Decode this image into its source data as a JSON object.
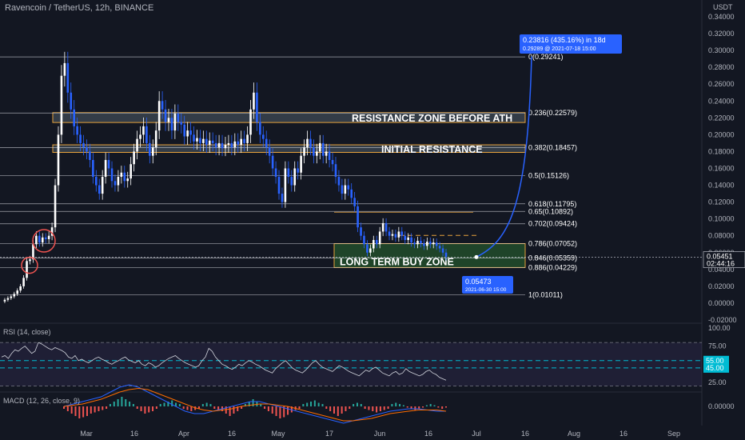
{
  "header": {
    "symbol": "Ravencoin / TetherUS, 12h, BINANCE",
    "unit": "USDT",
    "rsi_title": "RSI (14, close)",
    "macd_title": "MACD (12, 26, close, 9)"
  },
  "colors": {
    "background": "#131722",
    "up": "#ffffff",
    "down": "#2962ff",
    "level_line": "#d1d4dc",
    "zone_fill": "#4f5b66",
    "zone_border": "#e6a23c",
    "buy_zone": "#2e7d32",
    "projection": "#2962ff",
    "rsi_line": "#d1d4dc",
    "rsi_band": "#7e57c2",
    "rsi_level": "#00bcd4",
    "macd_line": "#2962ff",
    "signal_line": "#ff6d00",
    "hist_up": "#26a69a",
    "hist_down": "#ef5350",
    "label_box": "#2962ff"
  },
  "chart_data": {
    "type": "candlestick",
    "price_axis": {
      "ylim": [
        -0.02,
        0.345
      ],
      "ticks": [
        "0.34000",
        "0.32000",
        "0.30000",
        "0.28000",
        "0.26000",
        "0.24000",
        "0.22000",
        "0.20000",
        "0.18000",
        "0.16000",
        "0.14000",
        "0.12000",
        "0.10000",
        "0.08000",
        "0.06000",
        "0.04000",
        "0.02000",
        "0.00000",
        "-0.02000"
      ],
      "tick_values": [
        0.34,
        0.32,
        0.3,
        0.28,
        0.26,
        0.24,
        0.22,
        0.2,
        0.18,
        0.16,
        0.14,
        0.12,
        0.1,
        0.08,
        0.06,
        0.04,
        0.02,
        0.0,
        -0.02
      ],
      "current_price": "0.05451",
      "countdown": "02:44:16",
      "alt_price": "0.05500"
    },
    "time_axis": {
      "labels": [
        "Mar",
        "16",
        "Apr",
        "16",
        "May",
        "17",
        "Jun",
        "16",
        "Jul",
        "16",
        "Aug",
        "16",
        "Sep"
      ],
      "label_x": [
        108,
        168,
        230,
        290,
        348,
        412,
        475,
        536,
        596,
        657,
        718,
        780,
        843
      ]
    },
    "fib_levels": [
      {
        "label": "0.236(0.22579)",
        "value": 0.22579
      },
      {
        "label": "0.382(0.18457)",
        "value": 0.18457
      },
      {
        "label": "0.5(0.15126)",
        "value": 0.15126
      },
      {
        "label": "0.618(0.11795)",
        "value": 0.11795
      },
      {
        "label": "0.65(0.10892)",
        "value": 0.10892
      },
      {
        "label": "0.702(0.09424)",
        "value": 0.09424
      },
      {
        "label": "0.786(0.07052)",
        "value": 0.07052
      },
      {
        "label": "0.846(0.05359)",
        "value": 0.05359
      },
      {
        "label": "0.886(0.04229)",
        "value": 0.04229
      },
      {
        "label": "1(0.01011)",
        "value": 0.01011
      },
      {
        "label": "0(0.29241)",
        "value": 0.29241
      }
    ],
    "zones": [
      {
        "label": "RESISTANCE ZONE BEFORE ATH",
        "top": 0.2262,
        "bottom": 0.2145
      },
      {
        "label": "INITIAL RESISTANCE",
        "top": 0.188,
        "bottom": 0.179
      },
      {
        "label": "LONG TERM BUY ZONE",
        "top": 0.0707,
        "bottom": 0.0423
      }
    ],
    "projection": {
      "gain_label": "0.23816 (435.16%) in 18d",
      "target_label": "0.29289 @ 2021-07-18  15:00",
      "start_label": "0.05473",
      "start_date": "2021-06-30 15:00",
      "start_value": 0.05473,
      "end_value": 0.29289
    },
    "price_path": [
      0.002,
      0.004,
      0.006,
      0.008,
      0.011,
      0.015,
      0.02,
      0.03,
      0.05,
      0.052,
      0.07,
      0.08,
      0.072,
      0.078,
      0.076,
      0.08,
      0.09,
      0.14,
      0.2,
      0.27,
      0.285,
      0.25,
      0.23,
      0.21,
      0.2,
      0.19,
      0.185,
      0.18,
      0.17,
      0.15,
      0.14,
      0.13,
      0.15,
      0.17,
      0.16,
      0.145,
      0.14,
      0.15,
      0.155,
      0.145,
      0.148,
      0.165,
      0.18,
      0.195,
      0.2,
      0.21,
      0.19,
      0.175,
      0.185,
      0.205,
      0.24,
      0.23,
      0.215,
      0.22,
      0.205,
      0.225,
      0.215,
      0.212,
      0.198,
      0.205,
      0.2,
      0.192,
      0.196,
      0.19,
      0.195,
      0.188,
      0.193,
      0.19,
      0.185,
      0.19,
      0.184,
      0.188,
      0.19,
      0.185,
      0.192,
      0.188,
      0.195,
      0.19,
      0.2,
      0.23,
      0.25,
      0.215,
      0.2,
      0.195,
      0.185,
      0.175,
      0.16,
      0.15,
      0.13,
      0.12,
      0.16,
      0.15,
      0.14,
      0.16,
      0.155,
      0.175,
      0.185,
      0.195,
      0.185,
      0.175,
      0.18,
      0.19,
      0.175,
      0.18,
      0.17,
      0.165,
      0.15,
      0.14,
      0.13,
      0.14,
      0.135,
      0.125,
      0.115,
      0.09,
      0.08,
      0.07,
      0.06,
      0.065,
      0.075,
      0.07,
      0.085,
      0.095,
      0.085,
      0.08,
      0.082,
      0.078,
      0.085,
      0.08,
      0.075,
      0.078,
      0.072,
      0.07,
      0.074,
      0.071,
      0.068,
      0.073,
      0.07,
      0.072,
      0.068,
      0.065,
      0.06,
      0.055
    ],
    "rsi_axis": {
      "ticks": [
        "100.00",
        "75.00",
        "50.00",
        "25.00"
      ],
      "tick_values": [
        100,
        75,
        50,
        25
      ],
      "levels": [
        "55.00",
        "45.00"
      ],
      "level_values": [
        55,
        45
      ],
      "upper_band": 80,
      "lower_band": 20
    },
    "rsi_path": [
      60,
      62,
      58,
      65,
      70,
      68,
      72,
      75,
      70,
      65,
      68,
      80,
      78,
      75,
      72,
      70,
      73,
      71,
      69,
      66,
      60,
      58,
      62,
      55,
      57,
      54,
      52,
      55,
      58,
      60,
      57,
      55,
      52,
      50,
      53,
      55,
      58,
      60,
      56,
      54,
      52,
      55,
      50,
      48,
      52,
      50,
      46,
      48,
      52,
      55,
      58,
      60,
      62,
      58,
      55,
      52,
      50,
      48,
      46,
      48,
      55,
      60,
      72,
      68,
      60,
      55,
      50,
      48,
      45,
      43,
      46,
      50,
      48,
      52,
      55,
      53,
      50,
      48,
      45,
      42,
      40,
      38,
      44,
      48,
      52,
      55,
      50,
      45,
      42,
      40,
      38,
      42,
      47,
      52,
      55,
      50,
      46,
      44,
      42,
      40,
      44,
      48,
      46,
      43,
      40,
      38,
      36,
      34,
      38,
      42,
      40,
      44,
      46,
      42,
      38,
      36,
      34,
      38,
      40,
      36,
      38,
      44,
      40,
      38,
      36,
      34,
      36,
      40,
      42,
      38,
      36,
      32,
      30,
      28
    ],
    "macd_axis": {
      "ticks": [
        "0.00000"
      ],
      "tick_values": [
        0
      ]
    },
    "macd_hist": [
      -0.002,
      -0.004,
      -0.006,
      -0.008,
      -0.01,
      -0.009,
      -0.008,
      -0.006,
      -0.005,
      -0.004,
      -0.003,
      -0.002,
      0.002,
      0.004,
      0.006,
      0.008,
      0.006,
      0.004,
      0.002,
      -0.002,
      -0.004,
      -0.006,
      -0.005,
      -0.004,
      -0.002,
      0.002,
      0.003,
      0.004,
      0.005,
      0.003,
      0.002,
      -0.002,
      -0.003,
      -0.004,
      -0.003,
      -0.002,
      0.002,
      0.003,
      0.002,
      -0.002,
      -0.003,
      -0.004,
      -0.006,
      -0.008,
      -0.006,
      -0.004,
      -0.002,
      0.002,
      0.004,
      0.006,
      0.004,
      0.002,
      -0.002,
      -0.004,
      -0.006,
      -0.008,
      -0.01,
      -0.009,
      -0.007,
      -0.005,
      -0.003,
      -0.002,
      0.002,
      0.003,
      0.004,
      0.005,
      0.003,
      0.002,
      -0.002,
      -0.004,
      -0.006,
      -0.008,
      -0.006,
      -0.004,
      -0.002,
      0.002,
      0.003,
      0.002,
      -0.002,
      -0.003,
      -0.004,
      -0.005,
      -0.004,
      -0.003,
      -0.002,
      0.002,
      0.003,
      0.002,
      0.001,
      -0.001,
      -0.002,
      -0.003,
      -0.002,
      -0.001,
      0.001,
      0.002,
      0.001,
      -0.001,
      -0.002,
      -0.001
    ],
    "macd_line_path": [
      0.0,
      0.002,
      0.004,
      0.006,
      0.008,
      0.012,
      0.016,
      0.018,
      0.016,
      0.012,
      0.008,
      0.004,
      0.0,
      -0.004,
      -0.006,
      -0.006,
      -0.004,
      -0.002,
      0.0,
      0.002,
      0.004,
      0.004,
      0.002,
      0.0,
      -0.002,
      -0.004,
      -0.006,
      -0.008,
      -0.01,
      -0.012,
      -0.014,
      -0.012,
      -0.01,
      -0.008,
      -0.006,
      -0.004,
      -0.003,
      -0.002,
      -0.002,
      -0.003,
      -0.004,
      -0.004
    ],
    "signal_line_path": [
      0.0,
      0.001,
      0.002,
      0.004,
      0.006,
      0.009,
      0.012,
      0.014,
      0.015,
      0.014,
      0.011,
      0.008,
      0.005,
      0.002,
      -0.001,
      -0.003,
      -0.004,
      -0.003,
      -0.002,
      0.0,
      0.001,
      0.002,
      0.002,
      0.001,
      0.0,
      -0.002,
      -0.004,
      -0.006,
      -0.008,
      -0.01,
      -0.012,
      -0.012,
      -0.011,
      -0.01,
      -0.008,
      -0.006,
      -0.005,
      -0.004,
      -0.003,
      -0.003,
      -0.003,
      -0.004
    ]
  }
}
